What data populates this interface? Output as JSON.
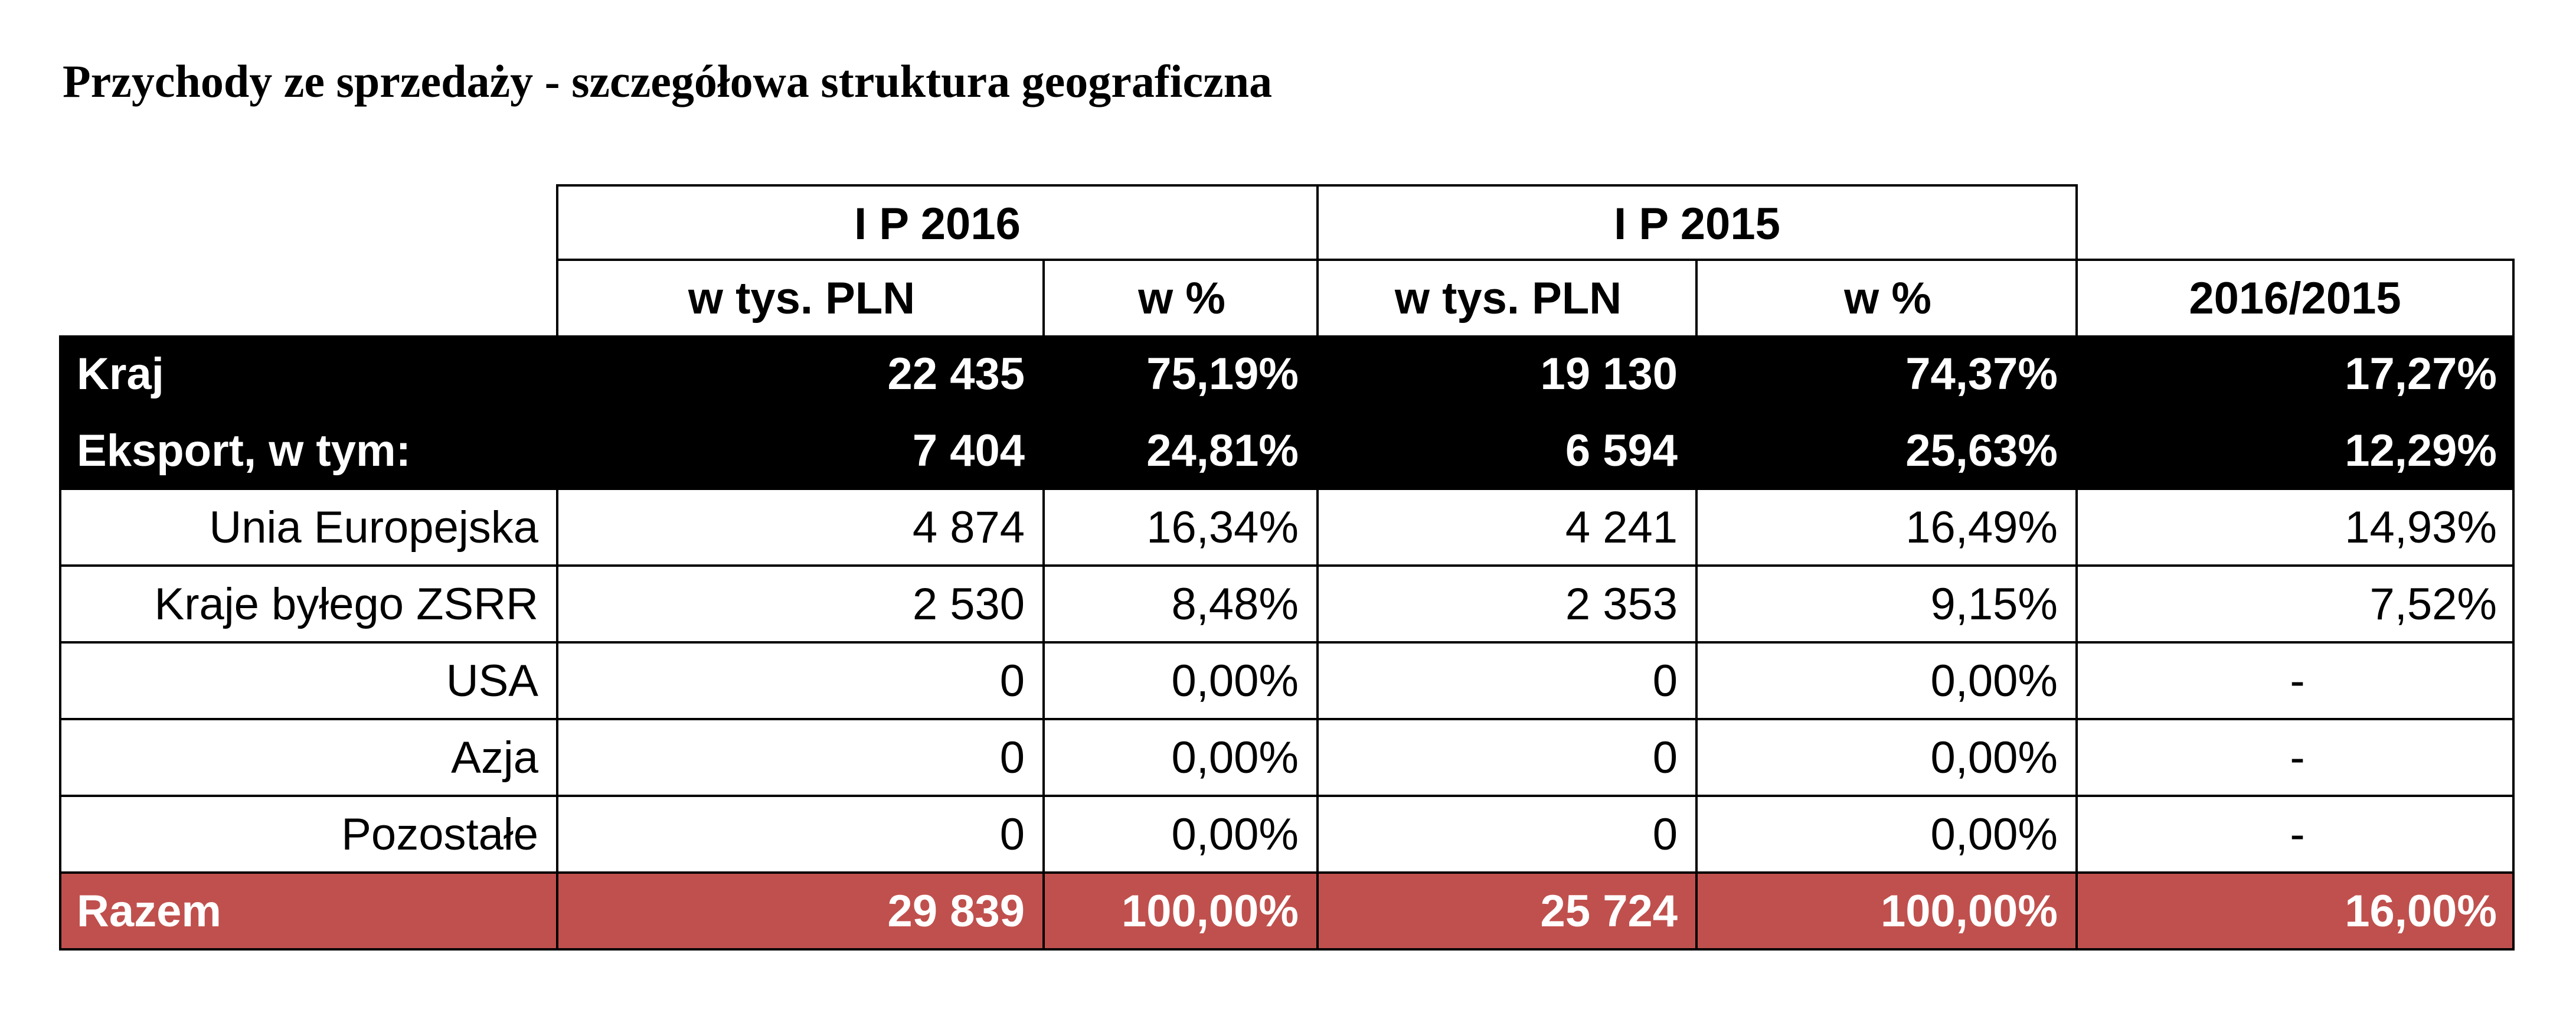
{
  "title": "Przychody ze sprzedaży - szczegółowa struktura geograficzna",
  "colors": {
    "highlight_row_bg": "#000000",
    "total_row_bg": "#c0504d",
    "highlight_text": "#ffffff"
  },
  "header": {
    "period_1": "I P 2016",
    "period_2": "I P 2015",
    "col_value_1": "w tys. PLN",
    "col_share_1": "w %",
    "col_value_2": "w tys. PLN",
    "col_share_2": "w %",
    "col_change": "2016/2015"
  },
  "rows": [
    {
      "label": "Kraj",
      "v2016": "22 435",
      "p2016": "75,19%",
      "v2015": "19 130",
      "p2015": "74,37%",
      "change": "17,27%"
    },
    {
      "label": "Eksport, w tym:",
      "v2016": "7 404",
      "p2016": "24,81%",
      "v2015": "6 594",
      "p2015": "25,63%",
      "change": "12,29%"
    },
    {
      "label": "Unia Europejska",
      "v2016": "4 874",
      "p2016": "16,34%",
      "v2015": "4 241",
      "p2015": "16,49%",
      "change": "14,93%"
    },
    {
      "label": "Kraje byłego ZSRR",
      "v2016": "2 530",
      "p2016": "8,48%",
      "v2015": "2 353",
      "p2015": "9,15%",
      "change": "7,52%"
    },
    {
      "label": "USA",
      "v2016": "0",
      "p2016": "0,00%",
      "v2015": "0",
      "p2015": "0,00%",
      "change": "-"
    },
    {
      "label": "Azja",
      "v2016": "0",
      "p2016": "0,00%",
      "v2015": "0",
      "p2015": "0,00%",
      "change": "-"
    },
    {
      "label": "Pozostałe",
      "v2016": "0",
      "p2016": "0,00%",
      "v2015": "0",
      "p2015": "0,00%",
      "change": "-"
    },
    {
      "label": "Razem",
      "v2016": "29 839",
      "p2016": "100,00%",
      "v2015": "25 724",
      "p2015": "100,00%",
      "change": "16,00%"
    }
  ]
}
